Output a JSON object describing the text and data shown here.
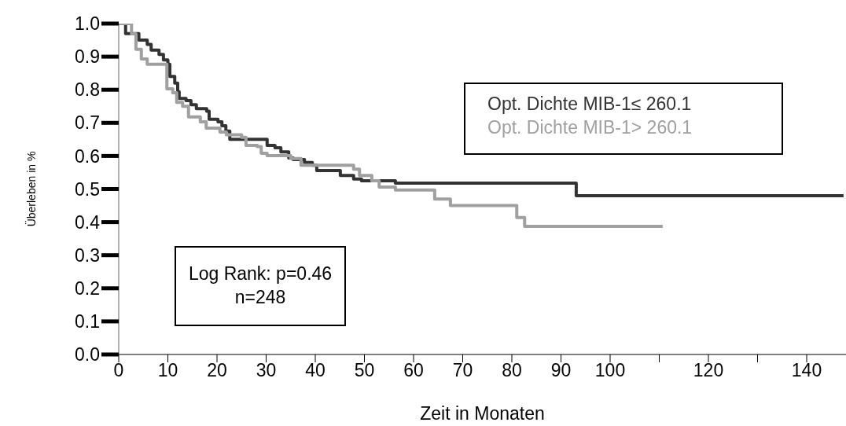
{
  "chart_data": {
    "type": "step",
    "xlabel": "Zeit in Monaten",
    "ylabel": "Überleben in %",
    "xlim": [
      0,
      148
    ],
    "xticks": [
      0,
      10,
      20,
      30,
      40,
      50,
      60,
      70,
      80,
      90,
      100,
      {
        "value": 110,
        "label": null
      },
      120,
      {
        "value": 130,
        "label": null
      },
      140
    ],
    "ylim": [
      0,
      1
    ],
    "yticks": [
      {
        "value": 0,
        "label": "0.0"
      },
      0.1,
      0.2,
      0.3,
      0.4,
      0.5,
      0.6,
      0.7,
      0.8,
      0.9,
      {
        "value": 1,
        "label": "1.0"
      }
    ],
    "legend": "top right",
    "marker": "none",
    "line_style": "solid",
    "annotations": [
      "Log Rank: p=0.46\nn=248"
    ],
    "series": [
      {
        "name": "Opt. Dichte MIB-1≤ 260.1",
        "color": "#333333",
        "x": [
          0,
          1.4,
          4.1,
          5.8,
          6.6,
          8.2,
          9.1,
          10,
          10.4,
          11.4,
          12,
          12.3,
          13.7,
          14.7,
          15.8,
          17.9,
          18.4,
          20.2,
          21,
          21.8,
          22.6,
          30.2,
          31.8,
          33,
          34.6,
          35.5,
          37.8,
          39.4,
          40.3,
          45.1,
          47.8,
          49.4,
          56.3,
          93.1,
          147.5
        ],
        "values": [
          1,
          0.97,
          0.95,
          0.937,
          0.92,
          0.907,
          0.89,
          0.877,
          0.84,
          0.82,
          0.794,
          0.774,
          0.767,
          0.755,
          0.743,
          0.735,
          0.711,
          0.703,
          0.691,
          0.675,
          0.65,
          0.632,
          0.625,
          0.612,
          0.594,
          0.589,
          0.58,
          0.572,
          0.556,
          0.541,
          0.53,
          0.525,
          0.518,
          0.48,
          0.48
        ]
      },
      {
        "name": "Opt. Dichte MIB-1> 260.1",
        "color": "#a0a0a0",
        "x": [
          0,
          2.6,
          3.5,
          4.6,
          5.8,
          9.8,
          11,
          11.8,
          13,
          14.2,
          16.6,
          17.8,
          20.6,
          21.9,
          25,
          25.9,
          28.2,
          29,
          30.2,
          35,
          37.1,
          47.8,
          49,
          51.5,
          53,
          56.3,
          64.3,
          67.5,
          81,
          82.6,
          110.7
        ],
        "values": [
          1,
          0.969,
          0.922,
          0.893,
          0.877,
          0.803,
          0.791,
          0.762,
          0.75,
          0.718,
          0.703,
          0.684,
          0.672,
          0.664,
          0.656,
          0.632,
          0.628,
          0.608,
          0.601,
          0.592,
          0.572,
          0.56,
          0.541,
          0.525,
          0.506,
          0.497,
          0.47,
          0.45,
          0.414,
          0.387,
          0.387
        ]
      }
    ]
  }
}
